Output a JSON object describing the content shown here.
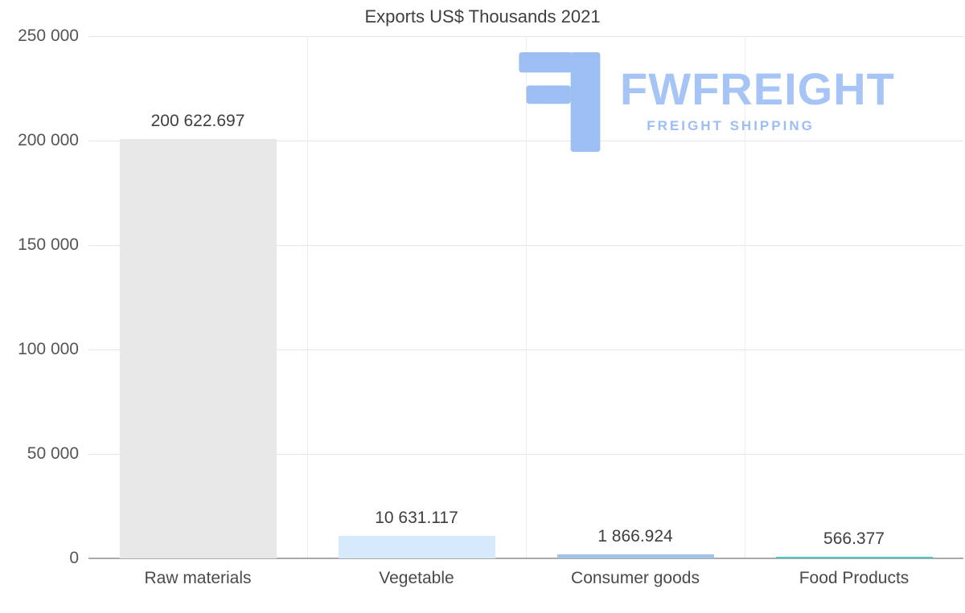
{
  "title": "Exports US$ Thousands 2021",
  "watermark": {
    "brand": "FWFREIGHT",
    "tagline": "FREIGHT SHIPPING",
    "color": "#a6c4f5"
  },
  "chart_data": {
    "type": "bar",
    "title": "Exports US$ Thousands 2021",
    "xlabel": "",
    "ylabel": "",
    "categories": [
      "Raw materials",
      "Vegetable",
      "Consumer goods",
      "Food Products"
    ],
    "values": [
      200622.697,
      10631.117,
      1866.924,
      566.377
    ],
    "value_labels": [
      "200 622.697",
      "10 631.117",
      "1 866.924",
      "566.377"
    ],
    "bar_colors": [
      "#e8e8e8",
      "#d6eafc",
      "#a3c4e8",
      "#54c7bf"
    ],
    "ylim": [
      0,
      250000
    ],
    "yticks": [
      0,
      50000,
      100000,
      150000,
      200000,
      250000
    ],
    "ytick_labels": [
      "0",
      "50 000",
      "100 000",
      "150 000",
      "200 000",
      "250 000"
    ],
    "grid": true,
    "legend_position": "none"
  },
  "layout_colors": {
    "gridline": "#e6e6e6",
    "axis_line": "#a9a9a9",
    "tick_text": "#555555"
  }
}
